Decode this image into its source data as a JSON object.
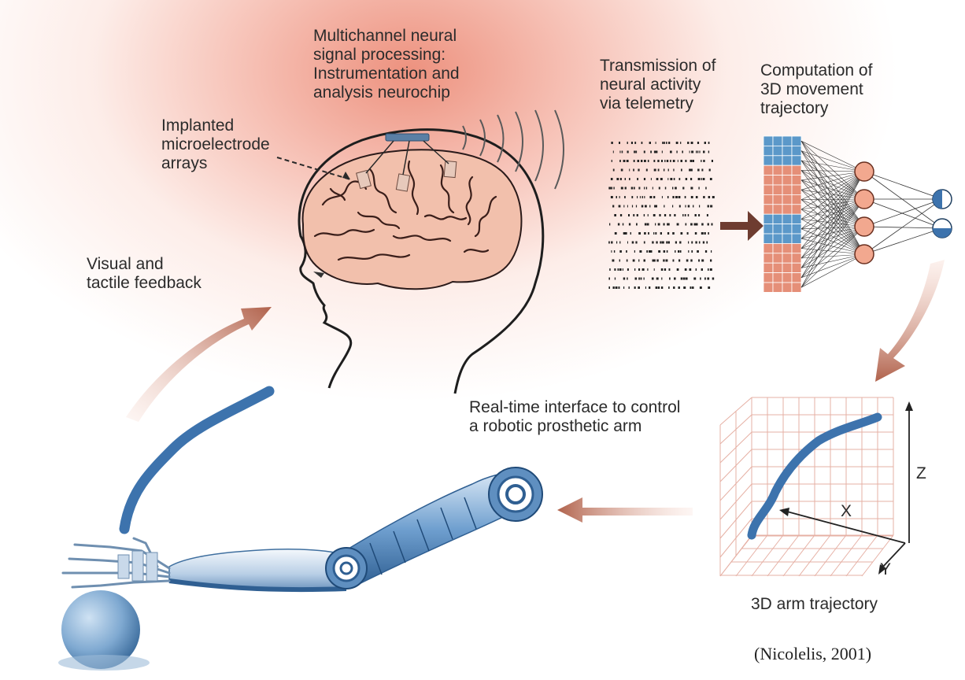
{
  "labels": {
    "neurochip": [
      "Multichannel neural",
      "signal processing:",
      "Instrumentation and",
      "analysis neurochip"
    ],
    "implanted": [
      "Implanted",
      "microelectrode",
      "arrays"
    ],
    "transmission": [
      "Transmission of",
      "neural activity",
      "via telemetry"
    ],
    "computation": [
      "Computation of",
      "3D movement",
      "trajectory"
    ],
    "feedback": [
      "Visual and",
      "tactile feedback"
    ],
    "interface": [
      "Real-time interface to control",
      "a robotic prosthetic arm"
    ],
    "trajectory_caption": "3D arm trajectory"
  },
  "axes": {
    "x": "X",
    "y": "Y",
    "z": "Z"
  },
  "citation": "(Nicolelis, 2001)",
  "colors": {
    "glow": "#ec8c78",
    "arrow": "#8a4a3a",
    "arm_blue": "#3d73ad",
    "brain_fill": "#f2c0ac",
    "grid_blue": "#5b98c9",
    "grid_red": "#e58f78"
  }
}
